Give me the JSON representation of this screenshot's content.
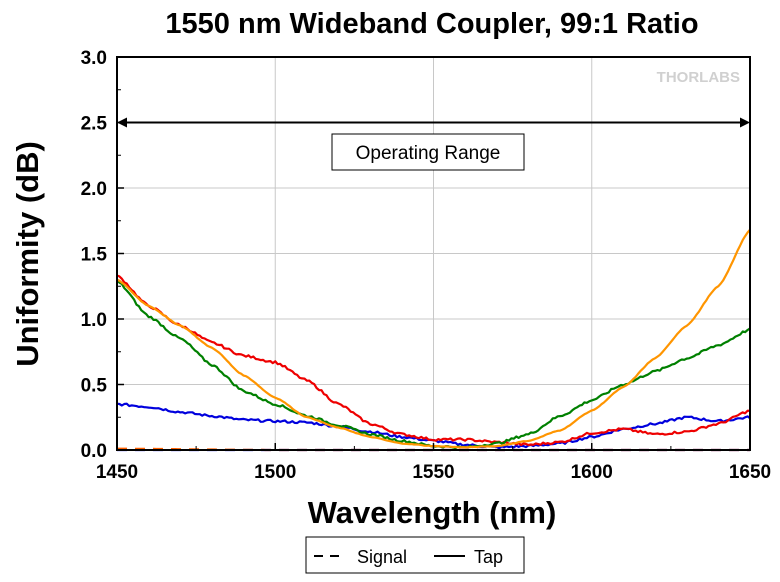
{
  "chart_data": {
    "type": "line",
    "title": "1550 nm Wideband Coupler, 99:1 Ratio",
    "xlabel": "Wavelength (nm)",
    "ylabel": "Uniformity (dB)",
    "xlim": [
      1450,
      1650
    ],
    "ylim": [
      0,
      3
    ],
    "xticks": [
      1450,
      1500,
      1550,
      1600,
      1650
    ],
    "xtick_labels": [
      "1450",
      "1500",
      "1550",
      "1600",
      "1650"
    ],
    "yticks": [
      0,
      0.5,
      1.0,
      1.5,
      2.0,
      2.5,
      3.0
    ],
    "ytick_labels": [
      "0.0",
      "0.5",
      "1.0",
      "1.5",
      "2.0",
      "2.5",
      "3.0"
    ],
    "grid": true,
    "logo": "THORLABS",
    "annotation": {
      "text": "Operating Range",
      "range": [
        1450,
        1650
      ],
      "y": 2.5
    },
    "legend": {
      "placement": "bottom",
      "entries": [
        {
          "label": "Signal",
          "style": "dashed"
        },
        {
          "label": "Tap",
          "style": "solid"
        }
      ]
    },
    "series": [
      {
        "style": "dashed",
        "color": "#0000ff",
        "x": [
          1450,
          1500,
          1550,
          1600,
          1650
        ],
        "y": [
          0.0,
          0.0,
          0.0,
          0.0,
          0.0
        ]
      },
      {
        "style": "dashed",
        "color": "#ff6000",
        "x": [
          1450,
          1500,
          1550,
          1600,
          1650
        ],
        "y": [
          0.01,
          0.0,
          0.0,
          0.0,
          0.0
        ]
      },
      {
        "style": "solid",
        "color": "#0000dd",
        "x": [
          1450,
          1460,
          1470,
          1480,
          1490,
          1500,
          1510,
          1520,
          1530,
          1540,
          1550,
          1560,
          1570,
          1580,
          1590,
          1600,
          1610,
          1620,
          1630,
          1640,
          1650
        ],
        "y": [
          0.35,
          0.33,
          0.29,
          0.26,
          0.23,
          0.22,
          0.21,
          0.18,
          0.14,
          0.1,
          0.07,
          0.04,
          0.02,
          0.03,
          0.05,
          0.1,
          0.16,
          0.2,
          0.25,
          0.22,
          0.25
        ]
      },
      {
        "style": "solid",
        "color": "#ee0000",
        "x": [
          1450,
          1460,
          1470,
          1480,
          1490,
          1500,
          1510,
          1520,
          1530,
          1540,
          1550,
          1560,
          1570,
          1580,
          1590,
          1600,
          1610,
          1620,
          1630,
          1640,
          1650
        ],
        "y": [
          1.33,
          1.1,
          0.95,
          0.82,
          0.72,
          0.67,
          0.53,
          0.35,
          0.2,
          0.12,
          0.08,
          0.08,
          0.06,
          0.04,
          0.06,
          0.13,
          0.16,
          0.12,
          0.14,
          0.2,
          0.3
        ]
      },
      {
        "style": "solid",
        "color": "#008000",
        "x": [
          1450,
          1460,
          1470,
          1480,
          1490,
          1500,
          1510,
          1520,
          1530,
          1540,
          1550,
          1560,
          1570,
          1580,
          1590,
          1600,
          1610,
          1620,
          1630,
          1640,
          1650
        ],
        "y": [
          1.29,
          1.02,
          0.85,
          0.65,
          0.45,
          0.35,
          0.26,
          0.19,
          0.12,
          0.07,
          0.03,
          0.02,
          0.05,
          0.12,
          0.26,
          0.38,
          0.5,
          0.6,
          0.7,
          0.8,
          0.92
        ]
      },
      {
        "style": "solid",
        "color": "#ff9500",
        "x": [
          1450,
          1460,
          1470,
          1480,
          1490,
          1500,
          1510,
          1520,
          1530,
          1540,
          1550,
          1560,
          1570,
          1580,
          1590,
          1600,
          1610,
          1620,
          1630,
          1640,
          1650
        ],
        "y": [
          1.3,
          1.1,
          0.95,
          0.78,
          0.57,
          0.4,
          0.25,
          0.17,
          0.1,
          0.05,
          0.03,
          0.02,
          0.03,
          0.07,
          0.15,
          0.3,
          0.48,
          0.7,
          0.95,
          1.25,
          1.68
        ]
      }
    ]
  }
}
